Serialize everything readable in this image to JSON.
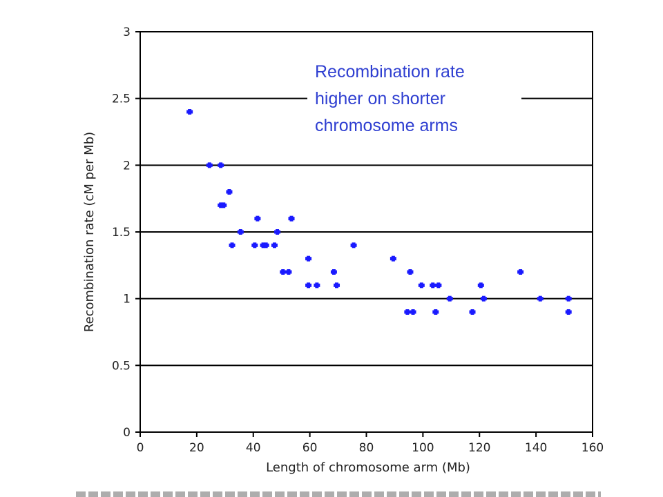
{
  "chart_data": {
    "type": "scatter",
    "title": "",
    "xlabel": "Length of chromosome arm (Mb)",
    "ylabel": "Recombination rate (cM per Mb)",
    "xlim": [
      0,
      160
    ],
    "ylim": [
      0,
      3
    ],
    "xticks": [
      "0",
      "20",
      "40",
      "60",
      "80",
      "100",
      "120",
      "140",
      "160"
    ],
    "yticks": [
      "0",
      "0.5",
      "1",
      "1.5",
      "2",
      "2.5",
      "3"
    ],
    "grid": "horizontal",
    "marker_color": "#1a1aff",
    "annotation": [
      "Recombination rate",
      "higher on shorter",
      "chromosome arms"
    ],
    "annotation_color": "#2f3fd1",
    "points": [
      [
        17.5,
        2.4
      ],
      [
        24.5,
        2.0
      ],
      [
        28.5,
        2.0
      ],
      [
        28.5,
        1.7
      ],
      [
        29.5,
        1.7
      ],
      [
        31.5,
        1.8
      ],
      [
        32.5,
        1.4
      ],
      [
        35.5,
        1.5
      ],
      [
        40.5,
        1.4
      ],
      [
        41.5,
        1.6
      ],
      [
        43.5,
        1.4
      ],
      [
        44.5,
        1.4
      ],
      [
        47.5,
        1.4
      ],
      [
        48.5,
        1.5
      ],
      [
        50.5,
        1.2
      ],
      [
        52.5,
        1.2
      ],
      [
        53.5,
        1.6
      ],
      [
        59.5,
        1.3
      ],
      [
        59.5,
        1.1
      ],
      [
        62.5,
        1.1
      ],
      [
        68.5,
        1.2
      ],
      [
        69.5,
        1.1
      ],
      [
        75.5,
        1.4
      ],
      [
        89.5,
        1.3
      ],
      [
        94.5,
        0.9
      ],
      [
        96.5,
        0.9
      ],
      [
        95.5,
        1.2
      ],
      [
        99.5,
        1.1
      ],
      [
        103.5,
        1.1
      ],
      [
        105.5,
        1.1
      ],
      [
        104.5,
        0.9
      ],
      [
        109.5,
        1.0
      ],
      [
        117.5,
        0.9
      ],
      [
        120.5,
        1.1
      ],
      [
        121.5,
        1.0
      ],
      [
        134.5,
        1.2
      ],
      [
        141.5,
        1.0
      ],
      [
        151.5,
        1.0
      ],
      [
        151.5,
        0.9
      ]
    ]
  }
}
